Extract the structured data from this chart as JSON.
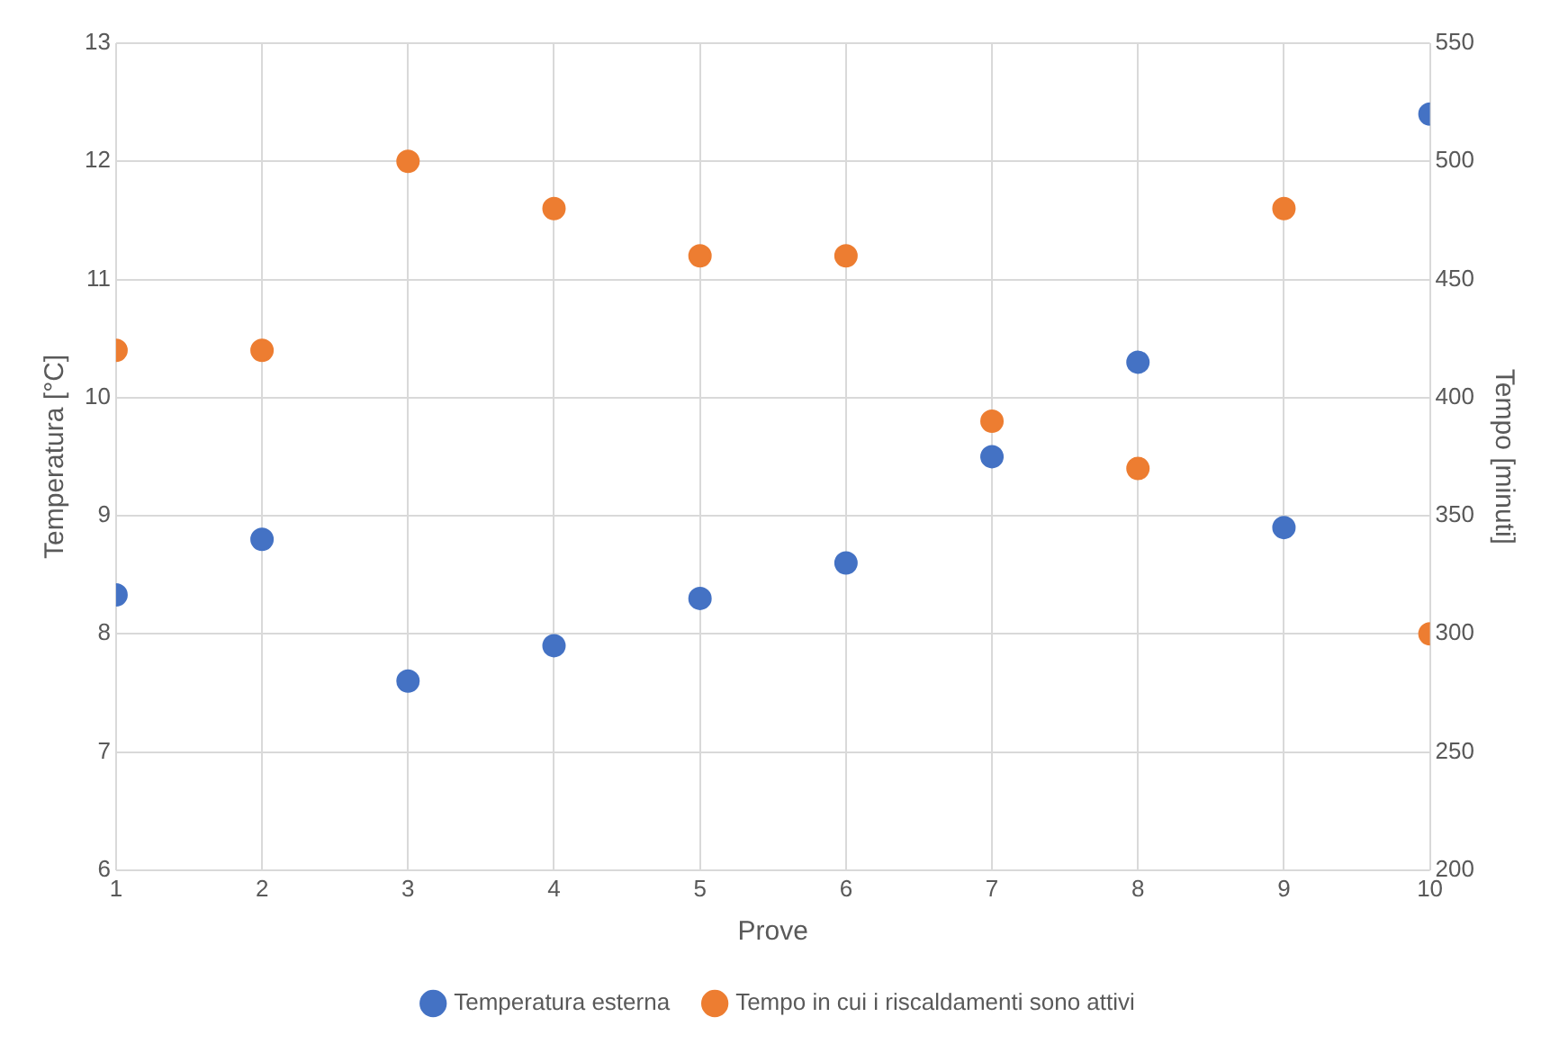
{
  "chart_data": {
    "type": "scatter",
    "xlabel": "Prove",
    "ylabel": "Temperatura [°C]",
    "y2label": "Tempo [minuti]",
    "x": [
      1,
      2,
      3,
      4,
      5,
      6,
      7,
      8,
      9,
      10
    ],
    "series": [
      {
        "name": "Temperatura esterna",
        "color": "#4472c4",
        "values": [
          8.33,
          8.8,
          7.6,
          7.9,
          8.3,
          8.6,
          9.5,
          10.3,
          8.9,
          12.4
        ]
      },
      {
        "name": "Tempo in cui i riscaldamenti sono attivi",
        "color": "#ed7d31",
        "axis": "y2",
        "values": [
          420,
          420,
          500,
          480,
          460,
          460,
          390,
          370,
          480,
          300
        ]
      }
    ],
    "xlim": [
      1,
      10
    ],
    "xticks": [
      1,
      2,
      3,
      4,
      5,
      6,
      7,
      8,
      9,
      10
    ],
    "ylim": [
      6,
      13
    ],
    "yticks": [
      6,
      7,
      8,
      9,
      10,
      11,
      12,
      13
    ],
    "y2lim": [
      200,
      550
    ],
    "y2ticks": [
      200,
      250,
      300,
      350,
      400,
      450,
      500,
      550
    ],
    "grid": true,
    "legend": "bottom",
    "marker": "circle"
  }
}
